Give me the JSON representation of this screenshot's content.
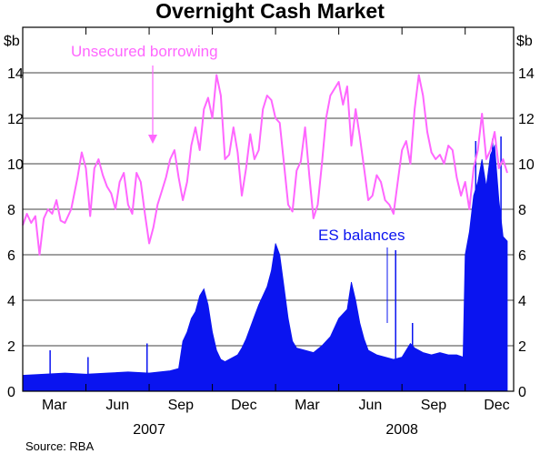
{
  "chart_data": {
    "type": "area",
    "title": "Overnight Cash Market",
    "source": "Source:  RBA",
    "y_unit_left": "$b",
    "y_unit_right": "$b",
    "ylim": [
      0,
      16
    ],
    "yticks": [
      "0",
      "2",
      "4",
      "6",
      "8",
      "10",
      "12",
      "14"
    ],
    "xlim_months": [
      0,
      22
    ],
    "x_month_labels": [
      {
        "label": "Mar",
        "m": 1.5
      },
      {
        "label": "Jun",
        "m": 4.5
      },
      {
        "label": "Sep",
        "m": 7.5
      },
      {
        "label": "Dec",
        "m": 10.5
      },
      {
        "label": "Mar",
        "m": 13.5
      },
      {
        "label": "Jun",
        "m": 16.5
      },
      {
        "label": "Sep",
        "m": 19.5
      },
      {
        "label": "Dec",
        "m": 22.5
      }
    ],
    "x_month_ticks": [
      3,
      6,
      9,
      12,
      15,
      18,
      21
    ],
    "x_year_labels": [
      {
        "label": "2007",
        "m": 6
      },
      {
        "label": "2008",
        "m": 18
      }
    ],
    "grid": true,
    "colors": {
      "unsecured": "#ff66ff",
      "es": "#0a14f0",
      "grid": "#000000"
    },
    "annotations": {
      "unsecured": "Unsecured borrowing",
      "es": "ES balances"
    },
    "series": [
      {
        "name": "Unsecured borrowing",
        "style": "line",
        "points": [
          [
            0.0,
            7.3
          ],
          [
            0.2,
            7.8
          ],
          [
            0.4,
            7.4
          ],
          [
            0.6,
            7.7
          ],
          [
            0.8,
            6.0
          ],
          [
            1.0,
            7.6
          ],
          [
            1.2,
            8.0
          ],
          [
            1.4,
            7.8
          ],
          [
            1.6,
            8.4
          ],
          [
            1.8,
            7.5
          ],
          [
            2.0,
            7.4
          ],
          [
            2.3,
            8.0
          ],
          [
            2.6,
            9.4
          ],
          [
            2.8,
            10.5
          ],
          [
            3.0,
            9.8
          ],
          [
            3.2,
            7.7
          ],
          [
            3.4,
            9.8
          ],
          [
            3.6,
            10.2
          ],
          [
            3.8,
            9.5
          ],
          [
            4.0,
            9.0
          ],
          [
            4.2,
            8.7
          ],
          [
            4.4,
            8.0
          ],
          [
            4.6,
            9.2
          ],
          [
            4.8,
            9.6
          ],
          [
            5.0,
            8.2
          ],
          [
            5.2,
            7.8
          ],
          [
            5.4,
            9.6
          ],
          [
            5.6,
            9.2
          ],
          [
            5.8,
            7.8
          ],
          [
            6.0,
            6.5
          ],
          [
            6.2,
            7.2
          ],
          [
            6.4,
            8.2
          ],
          [
            6.6,
            8.8
          ],
          [
            6.8,
            9.4
          ],
          [
            7.0,
            10.2
          ],
          [
            7.2,
            10.6
          ],
          [
            7.4,
            9.4
          ],
          [
            7.6,
            8.4
          ],
          [
            7.8,
            9.2
          ],
          [
            8.0,
            10.8
          ],
          [
            8.2,
            11.6
          ],
          [
            8.4,
            10.6
          ],
          [
            8.6,
            12.4
          ],
          [
            8.8,
            12.9
          ],
          [
            9.0,
            12.0
          ],
          [
            9.2,
            13.9
          ],
          [
            9.4,
            13.0
          ],
          [
            9.6,
            10.2
          ],
          [
            9.8,
            10.4
          ],
          [
            10.0,
            11.6
          ],
          [
            10.2,
            10.5
          ],
          [
            10.4,
            8.6
          ],
          [
            10.6,
            9.8
          ],
          [
            10.8,
            11.3
          ],
          [
            11.0,
            10.2
          ],
          [
            11.2,
            10.6
          ],
          [
            11.4,
            12.4
          ],
          [
            11.6,
            13.0
          ],
          [
            11.8,
            12.8
          ],
          [
            12.0,
            12.0
          ],
          [
            12.2,
            11.8
          ],
          [
            12.4,
            10.0
          ],
          [
            12.6,
            8.2
          ],
          [
            12.8,
            7.9
          ],
          [
            13.0,
            9.7
          ],
          [
            13.2,
            10.1
          ],
          [
            13.4,
            11.6
          ],
          [
            13.6,
            9.5
          ],
          [
            13.8,
            7.6
          ],
          [
            14.0,
            8.2
          ],
          [
            14.2,
            10.0
          ],
          [
            14.4,
            12.0
          ],
          [
            14.6,
            13.0
          ],
          [
            14.8,
            13.3
          ],
          [
            15.0,
            13.6
          ],
          [
            15.2,
            12.6
          ],
          [
            15.4,
            13.4
          ],
          [
            15.6,
            10.8
          ],
          [
            15.8,
            12.4
          ],
          [
            16.0,
            11.2
          ],
          [
            16.2,
            9.8
          ],
          [
            16.4,
            8.4
          ],
          [
            16.6,
            8.6
          ],
          [
            16.8,
            9.5
          ],
          [
            17.0,
            9.2
          ],
          [
            17.2,
            8.4
          ],
          [
            17.4,
            8.2
          ],
          [
            17.6,
            7.8
          ],
          [
            17.8,
            9.2
          ],
          [
            18.0,
            10.6
          ],
          [
            18.2,
            11.0
          ],
          [
            18.4,
            10.0
          ],
          [
            18.6,
            12.4
          ],
          [
            18.8,
            13.9
          ],
          [
            19.0,
            13.0
          ],
          [
            19.2,
            11.4
          ],
          [
            19.4,
            10.5
          ],
          [
            19.6,
            10.2
          ],
          [
            19.8,
            10.4
          ],
          [
            20.0,
            10.0
          ],
          [
            20.2,
            10.8
          ],
          [
            20.4,
            10.6
          ],
          [
            20.6,
            9.4
          ],
          [
            20.8,
            8.6
          ],
          [
            21.0,
            9.2
          ],
          [
            21.2,
            8.0
          ],
          [
            21.4,
            9.8
          ],
          [
            21.6,
            10.6
          ],
          [
            21.8,
            12.2
          ],
          [
            22.0,
            10.2
          ],
          [
            22.2,
            10.6
          ],
          [
            22.4,
            11.4
          ],
          [
            22.6,
            9.8
          ],
          [
            22.8,
            10.2
          ],
          [
            23.0,
            9.6
          ]
        ]
      },
      {
        "name": "ES balances",
        "style": "area",
        "points": [
          [
            0.0,
            0.7
          ],
          [
            1.0,
            0.75
          ],
          [
            2.0,
            0.8
          ],
          [
            3.0,
            0.75
          ],
          [
            4.0,
            0.8
          ],
          [
            5.0,
            0.85
          ],
          [
            6.0,
            0.8
          ],
          [
            7.0,
            0.9
          ],
          [
            7.4,
            1.0
          ],
          [
            7.6,
            2.2
          ],
          [
            7.8,
            2.6
          ],
          [
            8.0,
            3.2
          ],
          [
            8.2,
            3.5
          ],
          [
            8.4,
            4.2
          ],
          [
            8.6,
            4.5
          ],
          [
            8.8,
            3.8
          ],
          [
            9.0,
            2.6
          ],
          [
            9.2,
            1.8
          ],
          [
            9.4,
            1.4
          ],
          [
            9.6,
            1.3
          ],
          [
            9.8,
            1.4
          ],
          [
            10.0,
            1.5
          ],
          [
            10.2,
            1.6
          ],
          [
            10.4,
            1.9
          ],
          [
            10.6,
            2.3
          ],
          [
            10.8,
            2.8
          ],
          [
            11.0,
            3.3
          ],
          [
            11.2,
            3.8
          ],
          [
            11.4,
            4.2
          ],
          [
            11.6,
            4.6
          ],
          [
            11.8,
            5.3
          ],
          [
            12.0,
            6.5
          ],
          [
            12.2,
            6.0
          ],
          [
            12.4,
            4.6
          ],
          [
            12.6,
            3.2
          ],
          [
            12.8,
            2.2
          ],
          [
            13.0,
            1.9
          ],
          [
            13.4,
            1.8
          ],
          [
            13.8,
            1.7
          ],
          [
            14.2,
            2.0
          ],
          [
            14.6,
            2.4
          ],
          [
            15.0,
            3.2
          ],
          [
            15.4,
            3.6
          ],
          [
            15.6,
            4.8
          ],
          [
            15.8,
            4.0
          ],
          [
            16.0,
            3.0
          ],
          [
            16.2,
            2.3
          ],
          [
            16.4,
            1.8
          ],
          [
            16.8,
            1.6
          ],
          [
            17.2,
            1.5
          ],
          [
            17.6,
            1.4
          ],
          [
            18.0,
            1.5
          ],
          [
            18.2,
            1.8
          ],
          [
            18.4,
            2.1
          ],
          [
            18.6,
            1.9
          ],
          [
            19.0,
            1.7
          ],
          [
            19.4,
            1.6
          ],
          [
            19.8,
            1.7
          ],
          [
            20.2,
            1.6
          ],
          [
            20.6,
            1.6
          ],
          [
            20.9,
            1.5
          ],
          [
            21.0,
            6.0
          ],
          [
            21.2,
            7.0
          ],
          [
            21.4,
            8.6
          ],
          [
            21.6,
            9.2
          ],
          [
            21.8,
            10.2
          ],
          [
            22.0,
            9.0
          ],
          [
            22.2,
            10.4
          ],
          [
            22.4,
            10.8
          ],
          [
            22.6,
            8.4
          ],
          [
            22.8,
            6.8
          ],
          [
            23.0,
            6.6
          ]
        ],
        "spikes": [
          [
            1.3,
            1.8
          ],
          [
            3.1,
            1.5
          ],
          [
            5.9,
            2.1
          ],
          [
            17.7,
            6.2
          ],
          [
            18.5,
            3.0
          ],
          [
            21.5,
            11.0
          ],
          [
            22.3,
            11.1
          ],
          [
            22.7,
            11.2
          ]
        ]
      }
    ]
  }
}
